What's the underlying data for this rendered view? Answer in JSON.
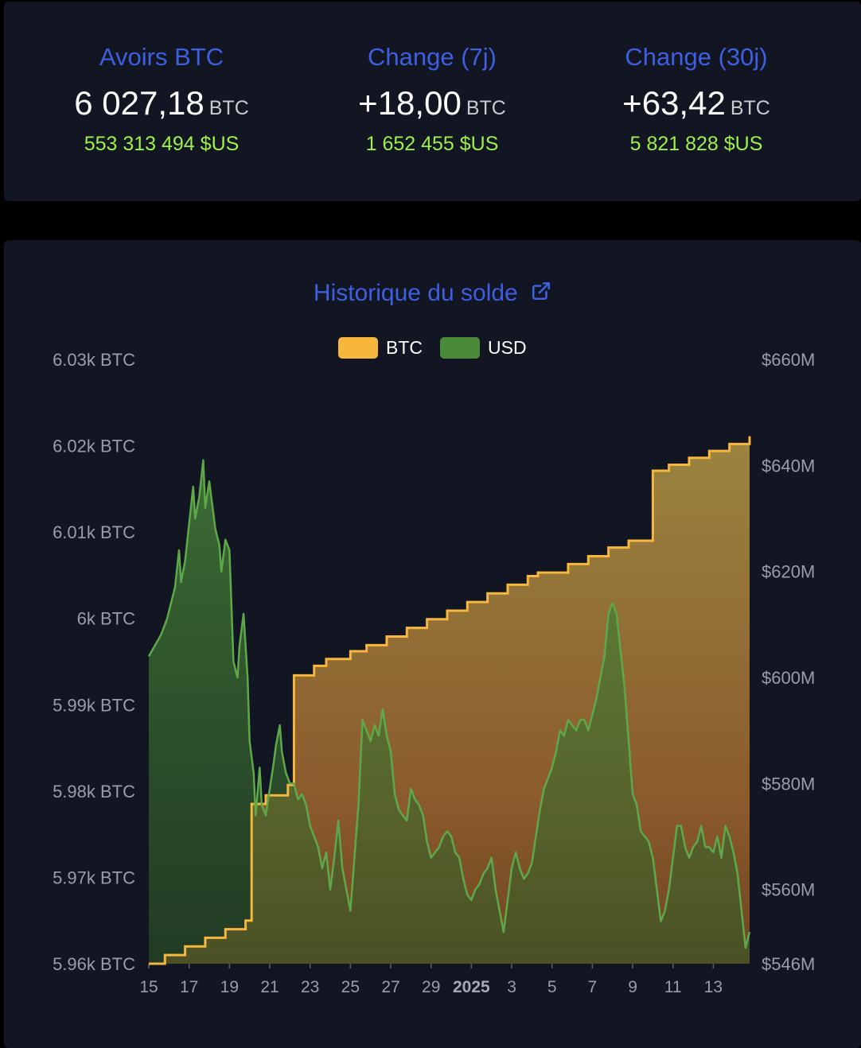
{
  "stats": [
    {
      "label": "Avoirs BTC",
      "value": "6 027,18",
      "unit": "BTC",
      "usd": "553 313 494 $US"
    },
    {
      "label": "Change (7j)",
      "value": "+18,00",
      "unit": "BTC",
      "usd": "1 652 455 $US"
    },
    {
      "label": "Change (30j)",
      "value": "+63,42",
      "unit": "BTC",
      "usd": "5 821 828 $US"
    }
  ],
  "chart": {
    "title": "Historique du solde",
    "title_icon": "external-link-icon",
    "legend": [
      {
        "label": "BTC",
        "color": "#f6b73c"
      },
      {
        "label": "USD",
        "color": "#4a8a3a"
      }
    ]
  },
  "chart_data": {
    "type": "line",
    "title": "Historique du solde",
    "x_tick_labels": [
      "15",
      "17",
      "19",
      "21",
      "23",
      "25",
      "27",
      "29",
      "2025",
      "3",
      "5",
      "7",
      "9",
      "11",
      "13"
    ],
    "y_left": {
      "unit": "BTC",
      "ylim": [
        5960,
        6030
      ],
      "tick_labels": [
        "6.03k BTC",
        "6.02k BTC",
        "6.01k BTC",
        "6k BTC",
        "5.99k BTC",
        "5.98k BTC",
        "5.97k BTC",
        "5.96k BTC"
      ]
    },
    "y_right": {
      "unit": "USD",
      "ylim": [
        546,
        660
      ],
      "tick_labels": [
        "$660M",
        "$640M",
        "$620M",
        "$600M",
        "$580M",
        "$560M",
        "$546M"
      ]
    },
    "x_range_days": [
      15,
      44.8
    ],
    "series": [
      {
        "name": "BTC",
        "axis": "left",
        "step": true,
        "points": [
          [
            15,
            5960.0
          ],
          [
            15.8,
            5961.0
          ],
          [
            16.8,
            5962.0
          ],
          [
            17.8,
            5963.0
          ],
          [
            18.8,
            5964.0
          ],
          [
            19.8,
            5965.0
          ],
          [
            20.1,
            5978.5
          ],
          [
            20.8,
            5979.5
          ],
          [
            21.9,
            5980.7
          ],
          [
            22.2,
            5993.4
          ],
          [
            23.2,
            5994.5
          ],
          [
            23.8,
            5995.3
          ],
          [
            25.0,
            5996.2
          ],
          [
            25.8,
            5996.9
          ],
          [
            26.8,
            5997.9
          ],
          [
            27.8,
            5998.9
          ],
          [
            28.8,
            5999.9
          ],
          [
            29.8,
            6000.9
          ],
          [
            30.8,
            6001.9
          ],
          [
            31.8,
            6002.9
          ],
          [
            32.8,
            6003.9
          ],
          [
            33.8,
            6004.9
          ],
          [
            34.3,
            6005.3
          ],
          [
            35.8,
            6006.3
          ],
          [
            36.8,
            6007.2
          ],
          [
            37.8,
            6008.2
          ],
          [
            38.8,
            6009.0
          ],
          [
            40.0,
            6017.1
          ],
          [
            40.8,
            6017.8
          ],
          [
            41.8,
            6018.6
          ],
          [
            42.8,
            6019.4
          ],
          [
            43.8,
            6020.2
          ],
          [
            44.8,
            6021.1
          ]
        ]
      },
      {
        "name": "USD",
        "axis": "right",
        "unit": "M USD",
        "points": [
          [
            15,
            604
          ],
          [
            15.3,
            606
          ],
          [
            15.6,
            608
          ],
          [
            15.9,
            611
          ],
          [
            16.1,
            614
          ],
          [
            16.3,
            617
          ],
          [
            16.5,
            624
          ],
          [
            16.6,
            618
          ],
          [
            16.8,
            622
          ],
          [
            17.0,
            629
          ],
          [
            17.2,
            636
          ],
          [
            17.3,
            630
          ],
          [
            17.5,
            634
          ],
          [
            17.7,
            641
          ],
          [
            17.8,
            632
          ],
          [
            18.0,
            637
          ],
          [
            18.2,
            631
          ],
          [
            18.3,
            628
          ],
          [
            18.5,
            625
          ],
          [
            18.6,
            620
          ],
          [
            18.8,
            626
          ],
          [
            19.0,
            624
          ],
          [
            19.2,
            603
          ],
          [
            19.4,
            600
          ],
          [
            19.5,
            606
          ],
          [
            19.7,
            612
          ],
          [
            19.9,
            600
          ],
          [
            20.0,
            588
          ],
          [
            20.2,
            582
          ],
          [
            20.3,
            574
          ],
          [
            20.5,
            583
          ],
          [
            20.6,
            576
          ],
          [
            20.8,
            574
          ],
          [
            21.0,
            579
          ],
          [
            21.2,
            584
          ],
          [
            21.3,
            587
          ],
          [
            21.5,
            591
          ],
          [
            21.6,
            586
          ],
          [
            21.8,
            582
          ],
          [
            22.0,
            580
          ],
          [
            22.2,
            580
          ],
          [
            22.4,
            577
          ],
          [
            22.6,
            578
          ],
          [
            22.8,
            576
          ],
          [
            23.0,
            572
          ],
          [
            23.2,
            570
          ],
          [
            23.4,
            568
          ],
          [
            23.6,
            564
          ],
          [
            23.8,
            567
          ],
          [
            24.0,
            560
          ],
          [
            24.2,
            566
          ],
          [
            24.4,
            573
          ],
          [
            24.6,
            564
          ],
          [
            24.8,
            560
          ],
          [
            25.0,
            556
          ],
          [
            25.2,
            566
          ],
          [
            25.4,
            576
          ],
          [
            25.6,
            592
          ],
          [
            25.8,
            590
          ],
          [
            26.0,
            588
          ],
          [
            26.2,
            591
          ],
          [
            26.4,
            589
          ],
          [
            26.6,
            594
          ],
          [
            26.8,
            589
          ],
          [
            27.0,
            586
          ],
          [
            27.2,
            578
          ],
          [
            27.4,
            575
          ],
          [
            27.6,
            574
          ],
          [
            27.8,
            573
          ],
          [
            28.0,
            579
          ],
          [
            28.2,
            577
          ],
          [
            28.4,
            576
          ],
          [
            28.6,
            574
          ],
          [
            28.8,
            569
          ],
          [
            29.0,
            566
          ],
          [
            29.2,
            567
          ],
          [
            29.4,
            568
          ],
          [
            29.6,
            570
          ],
          [
            29.8,
            571
          ],
          [
            30.0,
            570
          ],
          [
            30.2,
            567
          ],
          [
            30.4,
            566
          ],
          [
            30.6,
            562
          ],
          [
            30.8,
            559
          ],
          [
            31.0,
            558
          ],
          [
            31.2,
            560
          ],
          [
            31.4,
            561
          ],
          [
            31.6,
            563
          ],
          [
            31.8,
            564
          ],
          [
            32.0,
            566
          ],
          [
            32.2,
            560
          ],
          [
            32.4,
            556
          ],
          [
            32.6,
            552
          ],
          [
            32.8,
            558
          ],
          [
            33.0,
            564
          ],
          [
            33.2,
            567
          ],
          [
            33.4,
            564
          ],
          [
            33.6,
            562
          ],
          [
            33.8,
            563
          ],
          [
            34.0,
            565
          ],
          [
            34.2,
            570
          ],
          [
            34.4,
            575
          ],
          [
            34.6,
            579
          ],
          [
            34.8,
            581
          ],
          [
            35.0,
            583
          ],
          [
            35.2,
            586
          ],
          [
            35.4,
            590
          ],
          [
            35.6,
            589
          ],
          [
            35.8,
            592
          ],
          [
            36.0,
            591
          ],
          [
            36.2,
            590
          ],
          [
            36.4,
            592
          ],
          [
            36.6,
            592
          ],
          [
            36.8,
            590
          ],
          [
            37.0,
            593
          ],
          [
            37.2,
            596
          ],
          [
            37.4,
            600
          ],
          [
            37.6,
            604
          ],
          [
            37.8,
            612
          ],
          [
            38.0,
            614
          ],
          [
            38.2,
            612
          ],
          [
            38.4,
            605
          ],
          [
            38.6,
            598
          ],
          [
            38.8,
            588
          ],
          [
            39.0,
            578
          ],
          [
            39.2,
            576
          ],
          [
            39.4,
            571
          ],
          [
            39.6,
            570
          ],
          [
            39.8,
            569
          ],
          [
            40.0,
            566
          ],
          [
            40.2,
            560
          ],
          [
            40.4,
            554
          ],
          [
            40.6,
            556
          ],
          [
            40.8,
            560
          ],
          [
            41.0,
            566
          ],
          [
            41.2,
            572
          ],
          [
            41.4,
            572
          ],
          [
            41.6,
            568
          ],
          [
            41.8,
            566
          ],
          [
            42.0,
            568
          ],
          [
            42.2,
            569
          ],
          [
            42.4,
            572
          ],
          [
            42.6,
            568
          ],
          [
            42.8,
            568
          ],
          [
            43.0,
            567
          ],
          [
            43.2,
            570
          ],
          [
            43.4,
            566
          ],
          [
            43.6,
            572
          ],
          [
            43.8,
            570
          ],
          [
            44.0,
            567
          ],
          [
            44.2,
            563
          ],
          [
            44.4,
            556
          ],
          [
            44.6,
            549
          ],
          [
            44.8,
            552
          ]
        ]
      }
    ]
  }
}
